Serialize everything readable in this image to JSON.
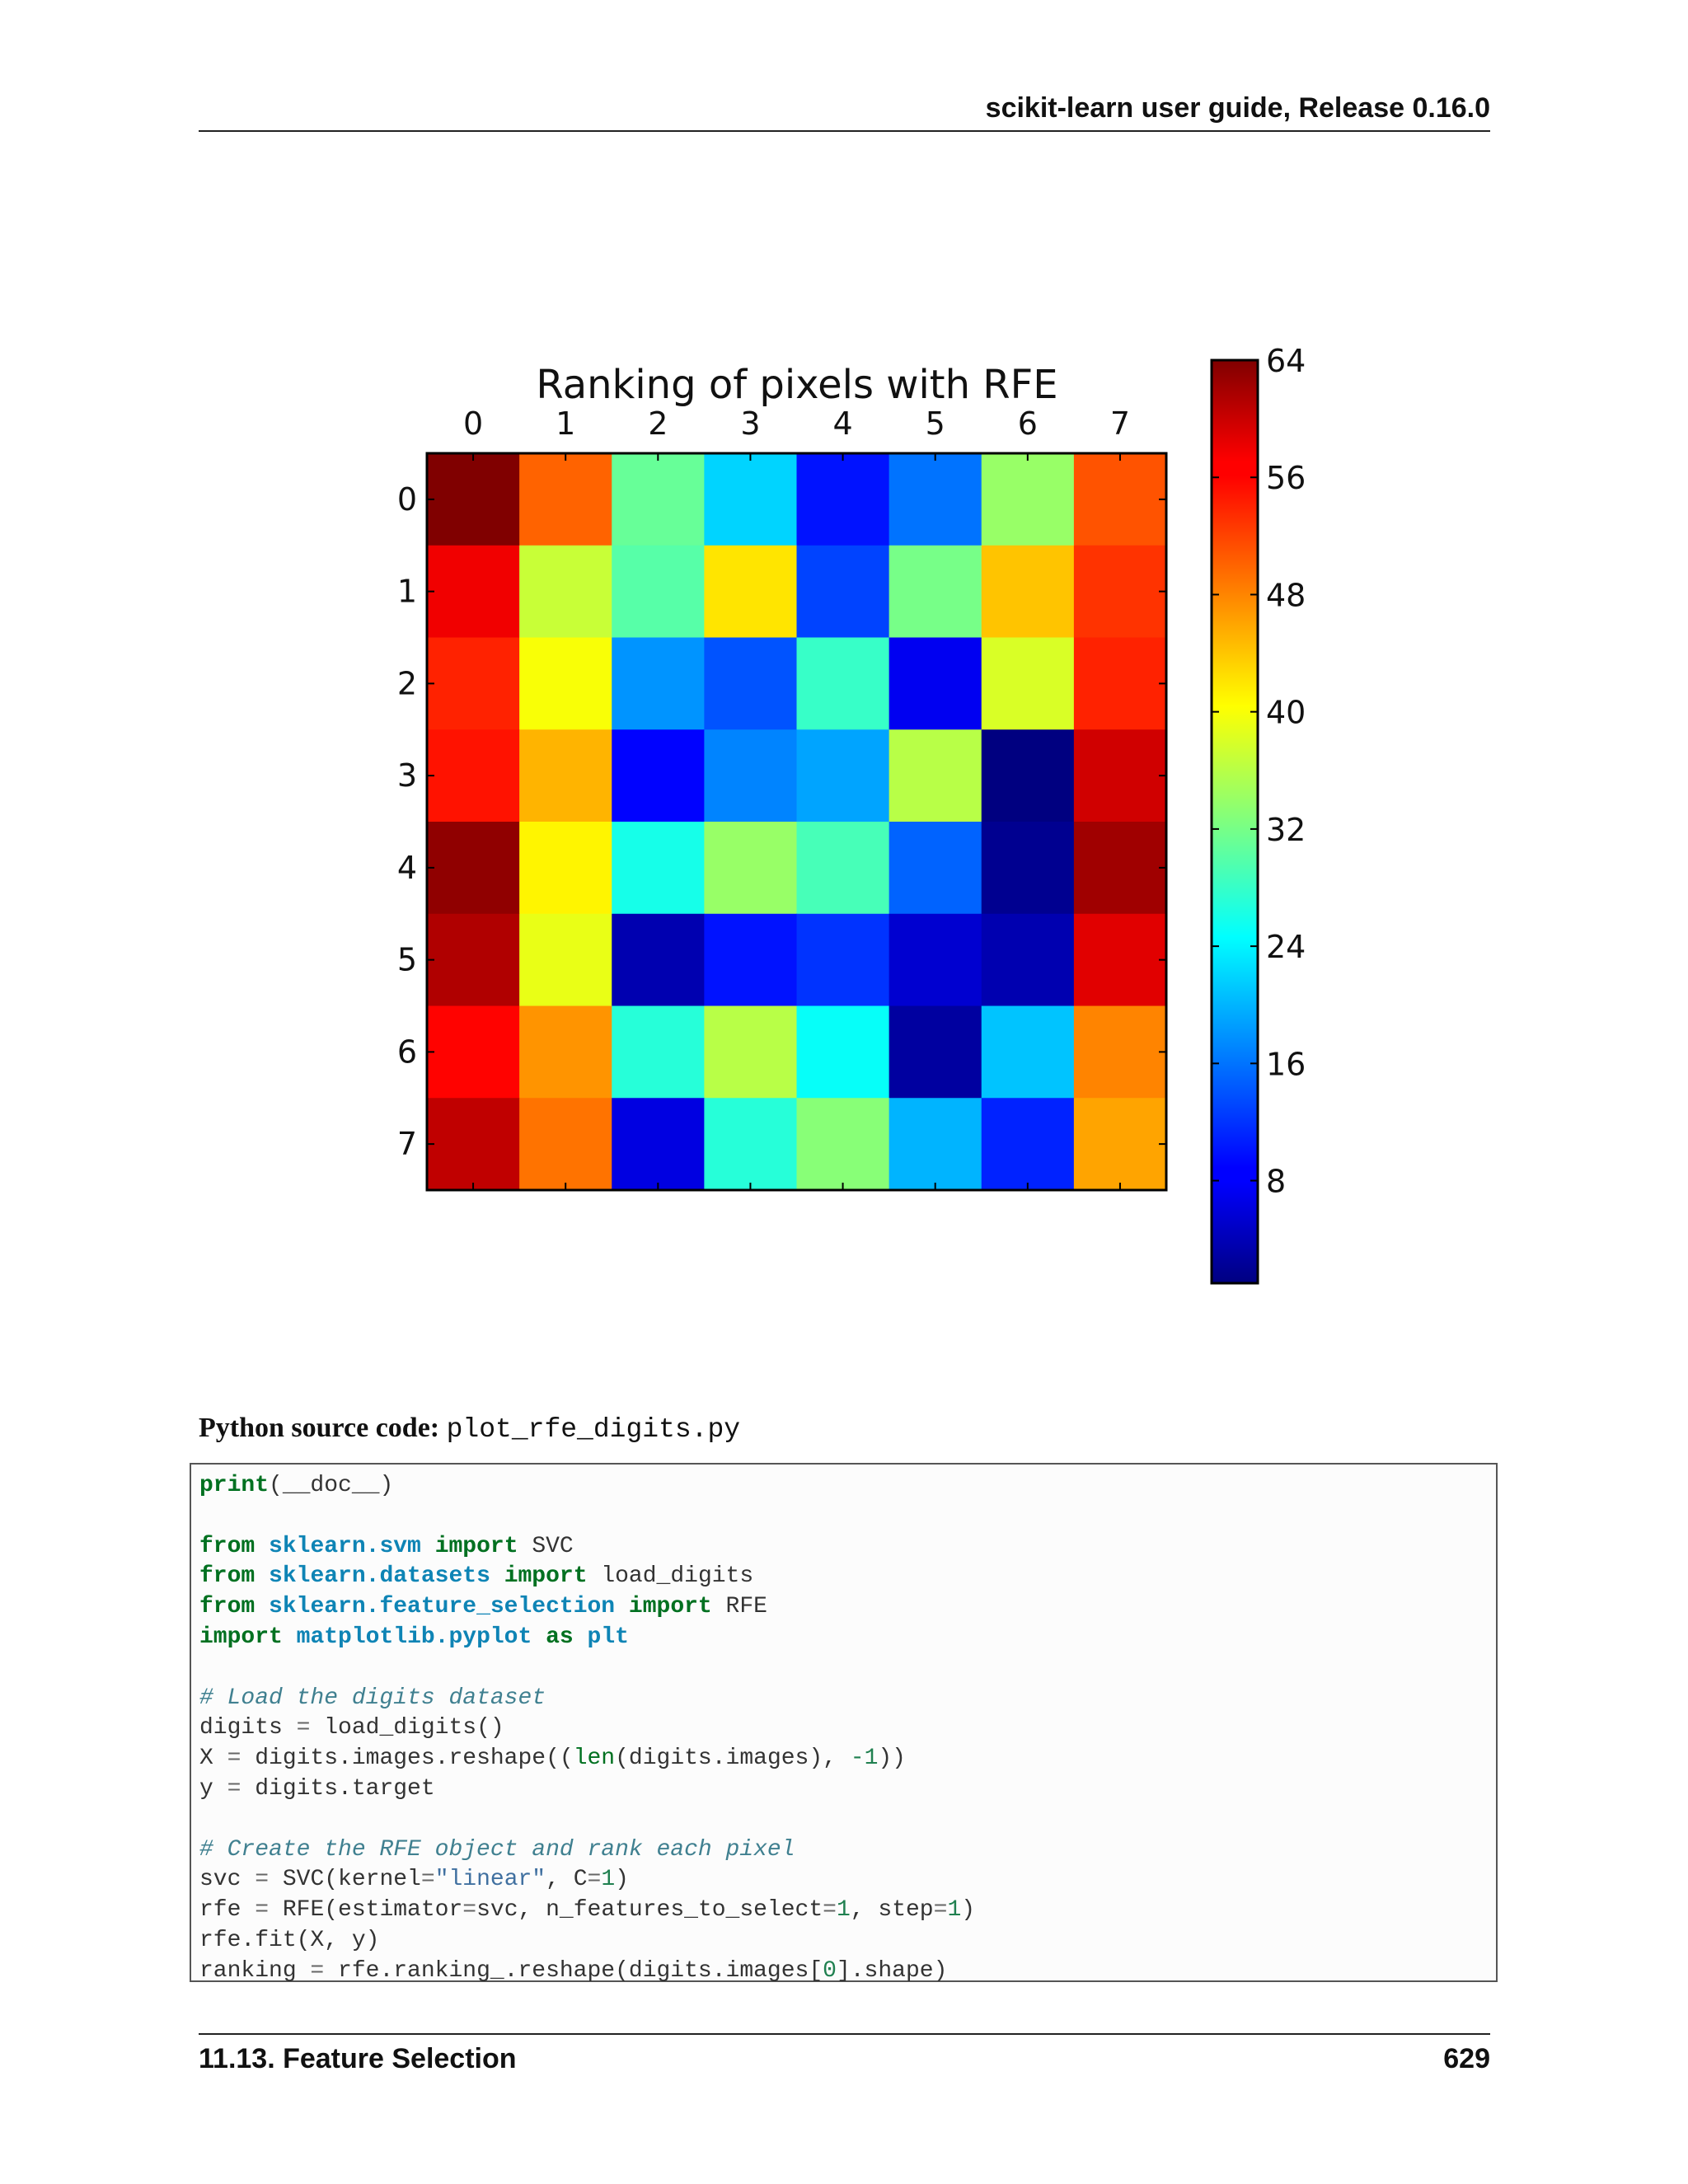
{
  "header": {
    "running_title": "scikit-learn user guide, Release 0.16.0"
  },
  "chart_data": {
    "type": "heatmap",
    "title": "Ranking of pixels with RFE",
    "x_ticks": [
      "0",
      "1",
      "2",
      "3",
      "4",
      "5",
      "6",
      "7"
    ],
    "y_ticks": [
      "0",
      "1",
      "2",
      "3",
      "4",
      "5",
      "6",
      "7"
    ],
    "x_axis_position": "top",
    "colormap": "jet",
    "vmin": 1,
    "vmax": 64,
    "colorbar_ticks": [
      8,
      16,
      24,
      32,
      40,
      48,
      56,
      64
    ],
    "values": [
      [
        64,
        50,
        31,
        22,
        10,
        16,
        34,
        51
      ],
      [
        57,
        37,
        30,
        42,
        13,
        32,
        44,
        53
      ],
      [
        54,
        40,
        18,
        14,
        28,
        8,
        38,
        54
      ],
      [
        55,
        45,
        9,
        17,
        19,
        36,
        1,
        59
      ],
      [
        63,
        41,
        26,
        34,
        29,
        15,
        2,
        62
      ],
      [
        61,
        39,
        4,
        10,
        12,
        6,
        4,
        58
      ],
      [
        56,
        47,
        27,
        36,
        25,
        3,
        21,
        48
      ],
      [
        60,
        49,
        7,
        27,
        33,
        20,
        11,
        46
      ]
    ]
  },
  "source": {
    "caption_label": "Python source code:",
    "filename": "plot_rfe_digits.py"
  },
  "code_lines": [
    [
      {
        "t": "print",
        "c": "kw"
      },
      {
        "t": "(__doc__)"
      }
    ],
    [],
    [
      {
        "t": "from",
        "c": "kw"
      },
      {
        "t": " "
      },
      {
        "t": "sklearn.svm",
        "c": "nn"
      },
      {
        "t": " "
      },
      {
        "t": "import",
        "c": "kw"
      },
      {
        "t": " SVC"
      }
    ],
    [
      {
        "t": "from",
        "c": "kw"
      },
      {
        "t": " "
      },
      {
        "t": "sklearn.datasets",
        "c": "nn"
      },
      {
        "t": " "
      },
      {
        "t": "import",
        "c": "kw"
      },
      {
        "t": " load_digits"
      }
    ],
    [
      {
        "t": "from",
        "c": "kw"
      },
      {
        "t": " "
      },
      {
        "t": "sklearn.feature_selection",
        "c": "nn"
      },
      {
        "t": " "
      },
      {
        "t": "import",
        "c": "kw"
      },
      {
        "t": " RFE"
      }
    ],
    [
      {
        "t": "import",
        "c": "kw"
      },
      {
        "t": " "
      },
      {
        "t": "matplotlib.pyplot",
        "c": "nn"
      },
      {
        "t": " "
      },
      {
        "t": "as",
        "c": "kw"
      },
      {
        "t": " "
      },
      {
        "t": "plt",
        "c": "nn"
      }
    ],
    [],
    [
      {
        "t": "# Load the digits dataset",
        "c": "c"
      }
    ],
    [
      {
        "t": "digits "
      },
      {
        "t": "=",
        "c": "o"
      },
      {
        "t": " load_digits()"
      }
    ],
    [
      {
        "t": "X "
      },
      {
        "t": "=",
        "c": "o"
      },
      {
        "t": " digits.images.reshape(("
      },
      {
        "t": "len",
        "c": "bi"
      },
      {
        "t": "(digits.images), "
      },
      {
        "t": "-1",
        "c": "num"
      },
      {
        "t": "))"
      }
    ],
    [
      {
        "t": "y "
      },
      {
        "t": "=",
        "c": "o"
      },
      {
        "t": " digits.target"
      }
    ],
    [],
    [
      {
        "t": "# Create the RFE object and rank each pixel",
        "c": "c"
      }
    ],
    [
      {
        "t": "svc "
      },
      {
        "t": "=",
        "c": "o"
      },
      {
        "t": " SVC(kernel"
      },
      {
        "t": "=",
        "c": "o"
      },
      {
        "t": "\"linear\"",
        "c": "s"
      },
      {
        "t": ", C"
      },
      {
        "t": "=",
        "c": "o"
      },
      {
        "t": "1",
        "c": "num"
      },
      {
        "t": ")"
      }
    ],
    [
      {
        "t": "rfe "
      },
      {
        "t": "=",
        "c": "o"
      },
      {
        "t": " RFE(estimator"
      },
      {
        "t": "=",
        "c": "o"
      },
      {
        "t": "svc, n_features_to_select"
      },
      {
        "t": "=",
        "c": "o"
      },
      {
        "t": "1",
        "c": "num"
      },
      {
        "t": ", step"
      },
      {
        "t": "=",
        "c": "o"
      },
      {
        "t": "1",
        "c": "num"
      },
      {
        "t": ")"
      }
    ],
    [
      {
        "t": "rfe.fit(X, y)"
      }
    ],
    [
      {
        "t": "ranking "
      },
      {
        "t": "=",
        "c": "o"
      },
      {
        "t": " rfe.ranking_.reshape(digits.images["
      },
      {
        "t": "0",
        "c": "num"
      },
      {
        "t": "].shape)"
      }
    ]
  ],
  "footer": {
    "section": "11.13. Feature Selection",
    "page_number": "629"
  }
}
